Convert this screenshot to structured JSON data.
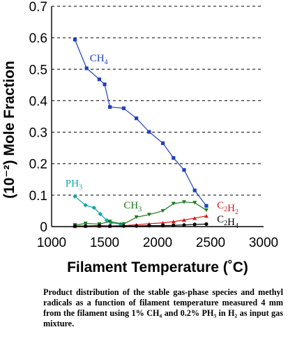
{
  "chart_data": {
    "type": "line",
    "xlabel": "Filament Temperature (˚C)",
    "ylabel": "(10⁻²) Mole Fraction",
    "xlim": [
      1000,
      3000
    ],
    "ylim": [
      0,
      0.7
    ],
    "x_ticks": [
      "1000",
      "1500",
      "2000",
      "2500",
      "3000"
    ],
    "y_ticks": [
      "0",
      "0.1",
      "0.2",
      "0.3",
      "0.4",
      "0.5",
      "0.6",
      "0.7"
    ],
    "grid": "horizontal dashed",
    "series": [
      {
        "name": "CH4",
        "label": {
          "base": "CH",
          "sub": "4"
        },
        "color": "#1f3fbf",
        "marker": "square",
        "x": [
          1220,
          1330,
          1450,
          1500,
          1550,
          1680,
          1800,
          1920,
          2050,
          2150,
          2250,
          2350,
          2460
        ],
        "y": [
          0.594,
          0.503,
          0.468,
          0.452,
          0.38,
          0.376,
          0.344,
          0.301,
          0.265,
          0.218,
          0.18,
          0.115,
          0.066
        ]
      },
      {
        "name": "PH3",
        "label": {
          "base": "PH",
          "sub": "3"
        },
        "color": "#13a6a6",
        "marker": "diamond",
        "x": [
          1220,
          1320,
          1400,
          1460,
          1520,
          1560,
          1650
        ],
        "y": [
          0.096,
          0.068,
          0.06,
          0.04,
          0.02,
          0.012,
          0.008
        ]
      },
      {
        "name": "CH3",
        "label": {
          "base": "CH",
          "sub": "3"
        },
        "color": "#1a7a1a",
        "marker": "triangle-down",
        "x": [
          1220,
          1320,
          1450,
          1550,
          1680,
          1800,
          1920,
          2050,
          2150,
          2250,
          2350,
          2460
        ],
        "y": [
          0.005,
          0.01,
          0.008,
          0.016,
          0.008,
          0.03,
          0.038,
          0.05,
          0.073,
          0.078,
          0.076,
          0.052
        ]
      },
      {
        "name": "C2H2",
        "label": {
          "parts": [
            [
              "C",
              "2"
            ],
            [
              "H",
              "2"
            ]
          ]
        },
        "color": "#d81818",
        "marker": "triangle-up",
        "x": [
          1220,
          1320,
          1450,
          1550,
          1680,
          1800,
          1920,
          2050,
          2150,
          2250,
          2350,
          2460
        ],
        "y": [
          0.001,
          0.002,
          0.002,
          0.002,
          0.003,
          0.006,
          0.009,
          0.012,
          0.016,
          0.021,
          0.027,
          0.034
        ]
      },
      {
        "name": "C2H4",
        "label": {
          "parts": [
            [
              "C",
              "2"
            ],
            [
              "H",
              "4"
            ]
          ]
        },
        "color": "#000000",
        "marker": "circle",
        "x": [
          1220,
          1320,
          1450,
          1550,
          1680,
          1800,
          1920,
          2050,
          2150,
          2250,
          2350,
          2460
        ],
        "y": [
          0.002,
          0.002,
          0.003,
          0.002,
          0.002,
          0.002,
          0.003,
          0.003,
          0.004,
          0.005,
          0.007,
          0.008
        ]
      }
    ]
  },
  "caption": "Product distribution of the  stable gas-phase species and methyl radicals as a function of filament temperature measured 4 mm from the filament using 1% CH₄ and 0.2% PH₃ in H₂ as input gas mixture."
}
